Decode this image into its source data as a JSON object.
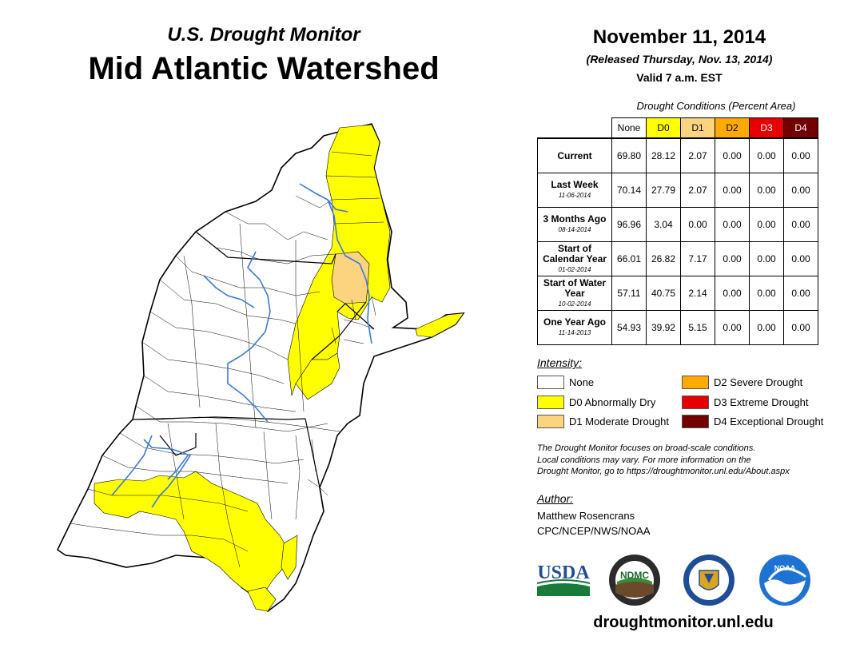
{
  "header": {
    "subtitle": "U.S. Drought Monitor",
    "title": "Mid Atlantic Watershed",
    "date": "November 11, 2014",
    "released": "(Released Thursday, Nov. 13, 2014)",
    "valid": "Valid 7 a.m. EST"
  },
  "table": {
    "caption": "Drought Conditions (Percent Area)",
    "columns": [
      "None",
      "D0",
      "D1",
      "D2",
      "D3",
      "D4"
    ],
    "column_colors": [
      "#ffffff",
      "#ffff00",
      "#fcd37f",
      "#ffaa00",
      "#e60000",
      "#730000"
    ],
    "rows": [
      {
        "label": "Current",
        "date": "",
        "values": [
          "69.80",
          "28.12",
          "2.07",
          "0.00",
          "0.00",
          "0.00"
        ]
      },
      {
        "label": "Last Week",
        "date": "11-06-2014",
        "values": [
          "70.14",
          "27.79",
          "2.07",
          "0.00",
          "0.00",
          "0.00"
        ]
      },
      {
        "label": "3 Months Ago",
        "date": "08-14-2014",
        "values": [
          "96.96",
          "3.04",
          "0.00",
          "0.00",
          "0.00",
          "0.00"
        ]
      },
      {
        "label": "Start of Calendar Year",
        "date": "01-02-2014",
        "values": [
          "66.01",
          "26.82",
          "7.17",
          "0.00",
          "0.00",
          "0.00"
        ]
      },
      {
        "label": "Start of Water Year",
        "date": "10-02-2014",
        "values": [
          "57.11",
          "40.75",
          "2.14",
          "0.00",
          "0.00",
          "0.00"
        ]
      },
      {
        "label": "One Year Ago",
        "date": "11-14-2013",
        "values": [
          "54.93",
          "39.92",
          "5.15",
          "0.00",
          "0.00",
          "0.00"
        ]
      }
    ]
  },
  "legend": {
    "title": "Intensity:",
    "items": [
      {
        "label": "None",
        "color": "#ffffff"
      },
      {
        "label": "D0 Abnormally Dry",
        "color": "#ffff00"
      },
      {
        "label": "D1 Moderate Drought",
        "color": "#fcd37f"
      },
      {
        "label": "D2 Severe Drought",
        "color": "#ffaa00"
      },
      {
        "label": "D3 Extreme Drought",
        "color": "#e60000"
      },
      {
        "label": "D4 Exceptional Drought",
        "color": "#730000"
      }
    ]
  },
  "note": {
    "line1": "The Drought Monitor focuses on broad-scale conditions.",
    "line2": "Local conditions may vary. For more information on the",
    "line3": "Drought Monitor, go to https://droughtmonitor.unl.edu/About.aspx"
  },
  "author": {
    "title": "Author:",
    "name": "Matthew Rosencrans",
    "org": "CPC/NCEP/NWS/NOAA"
  },
  "logos": {
    "usda": "USDA",
    "ndmc": "NDMC",
    "noaa": "NOAA"
  },
  "website": "droughtmonitor.unl.edu"
}
